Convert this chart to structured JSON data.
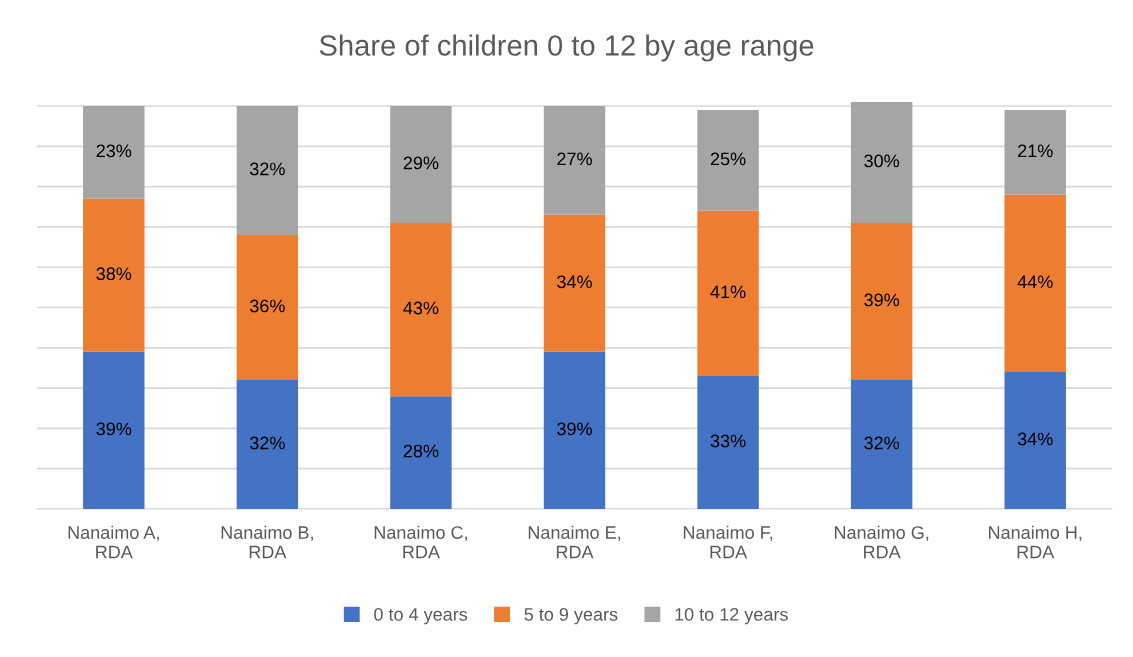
{
  "chart_data": {
    "type": "bar",
    "title": "Share of children 0 to 12 by age range",
    "categories": [
      "Nanaimo A,\nRDA",
      "Nanaimo B,\nRDA",
      "Nanaimo C,\nRDA",
      "Nanaimo E,\nRDA",
      "Nanaimo F,\nRDA",
      "Nanaimo G,\nRDA",
      "Nanaimo H,\nRDA"
    ],
    "stacked": true,
    "series": [
      {
        "name": "0 to 4 years",
        "color": "#4472c4",
        "values": [
          39,
          32,
          28,
          39,
          33,
          32,
          34
        ],
        "value_labels": [
          "39%",
          "32%",
          "28%",
          "39%",
          "33%",
          "32%",
          "34%"
        ]
      },
      {
        "name": "5 to 9 years",
        "color": "#ed7d31",
        "values": [
          38,
          36,
          43,
          34,
          41,
          39,
          44
        ],
        "value_labels": [
          "38%",
          "36%",
          "43%",
          "34%",
          "41%",
          "39%",
          "44%"
        ]
      },
      {
        "name": "10 to 12 years",
        "color": "#a5a5a5",
        "values": [
          23,
          32,
          29,
          27,
          25,
          30,
          21
        ],
        "value_labels": [
          "23%",
          "32%",
          "29%",
          "27%",
          "25%",
          "30%",
          "21%"
        ]
      }
    ],
    "ylim": [
      0,
      101
    ],
    "yticks": [
      0,
      10,
      20,
      30,
      40,
      50,
      60,
      70,
      80,
      90,
      100
    ],
    "tick_labels": "x",
    "grid": "y",
    "legend": "bottom"
  }
}
